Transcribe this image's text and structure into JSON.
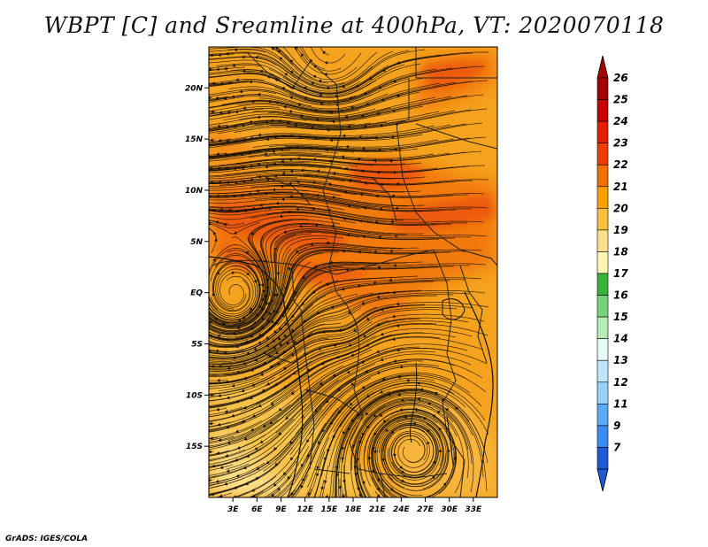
{
  "title": "WBPT [C] and Sreamline at 400hPa, VT: 2020070118",
  "credit": "GrADS: IGES/COLA",
  "map": {
    "variable": "WBPT",
    "units": "C",
    "level": "400hPa",
    "valid_time": "2020070118",
    "lat_range": [
      -20,
      24
    ],
    "lon_range": [
      0,
      36
    ],
    "lat_ticks": [
      {
        "value": 20,
        "label": "20N"
      },
      {
        "value": 15,
        "label": "15N"
      },
      {
        "value": 10,
        "label": "10N"
      },
      {
        "value": 5,
        "label": "5N"
      },
      {
        "value": 0,
        "label": "EQ"
      },
      {
        "value": -5,
        "label": "5S"
      },
      {
        "value": -10,
        "label": "10S"
      },
      {
        "value": -15,
        "label": "15S"
      }
    ],
    "lon_ticks": [
      {
        "value": 3,
        "label": "3E"
      },
      {
        "value": 6,
        "label": "6E"
      },
      {
        "value": 9,
        "label": "9E"
      },
      {
        "value": 12,
        "label": "12E"
      },
      {
        "value": 15,
        "label": "15E"
      },
      {
        "value": 18,
        "label": "18E"
      },
      {
        "value": 21,
        "label": "21E"
      },
      {
        "value": 24,
        "label": "24E"
      },
      {
        "value": 27,
        "label": "27E"
      },
      {
        "value": 30,
        "label": "30E"
      },
      {
        "value": 33,
        "label": "33E"
      }
    ],
    "circulations": [
      {
        "lon": 3.5,
        "lat": -1.5,
        "note": "cyclonic eddy"
      },
      {
        "lon": 17.5,
        "lat": -4.0,
        "note": "small eddy"
      },
      {
        "lon": 25.0,
        "lat": -13.5,
        "note": "anticyclone"
      },
      {
        "lon": 15.0,
        "lat": 22.0,
        "note": "eddy"
      }
    ]
  },
  "colorbar": {
    "levels": [
      {
        "label": "26",
        "color": "#a50000"
      },
      {
        "label": "25",
        "color": "#c80000"
      },
      {
        "label": "24",
        "color": "#e61e00"
      },
      {
        "label": "23",
        "color": "#f03c00"
      },
      {
        "label": "22",
        "color": "#f56e00"
      },
      {
        "label": "21",
        "color": "#f8a000"
      },
      {
        "label": "20",
        "color": "#fac040"
      },
      {
        "label": "19",
        "color": "#fde08c"
      },
      {
        "label": "18",
        "color": "#fff7b2"
      },
      {
        "label": "17",
        "color": "#3ab33a"
      },
      {
        "label": "16",
        "color": "#78d278"
      },
      {
        "label": "15",
        "color": "#b4ecb4"
      },
      {
        "label": "14",
        "color": "#e6faf8"
      },
      {
        "label": "13",
        "color": "#bee6fa"
      },
      {
        "label": "12",
        "color": "#96d2fa"
      },
      {
        "label": "11",
        "color": "#5aaaf5"
      },
      {
        "label": "9",
        "color": "#3c8cf0"
      },
      {
        "label": "7",
        "color": "#1e5ad2"
      }
    ],
    "top_arrow_color": "#a50000",
    "bottom_arrow_color": "#1e5ad2"
  }
}
